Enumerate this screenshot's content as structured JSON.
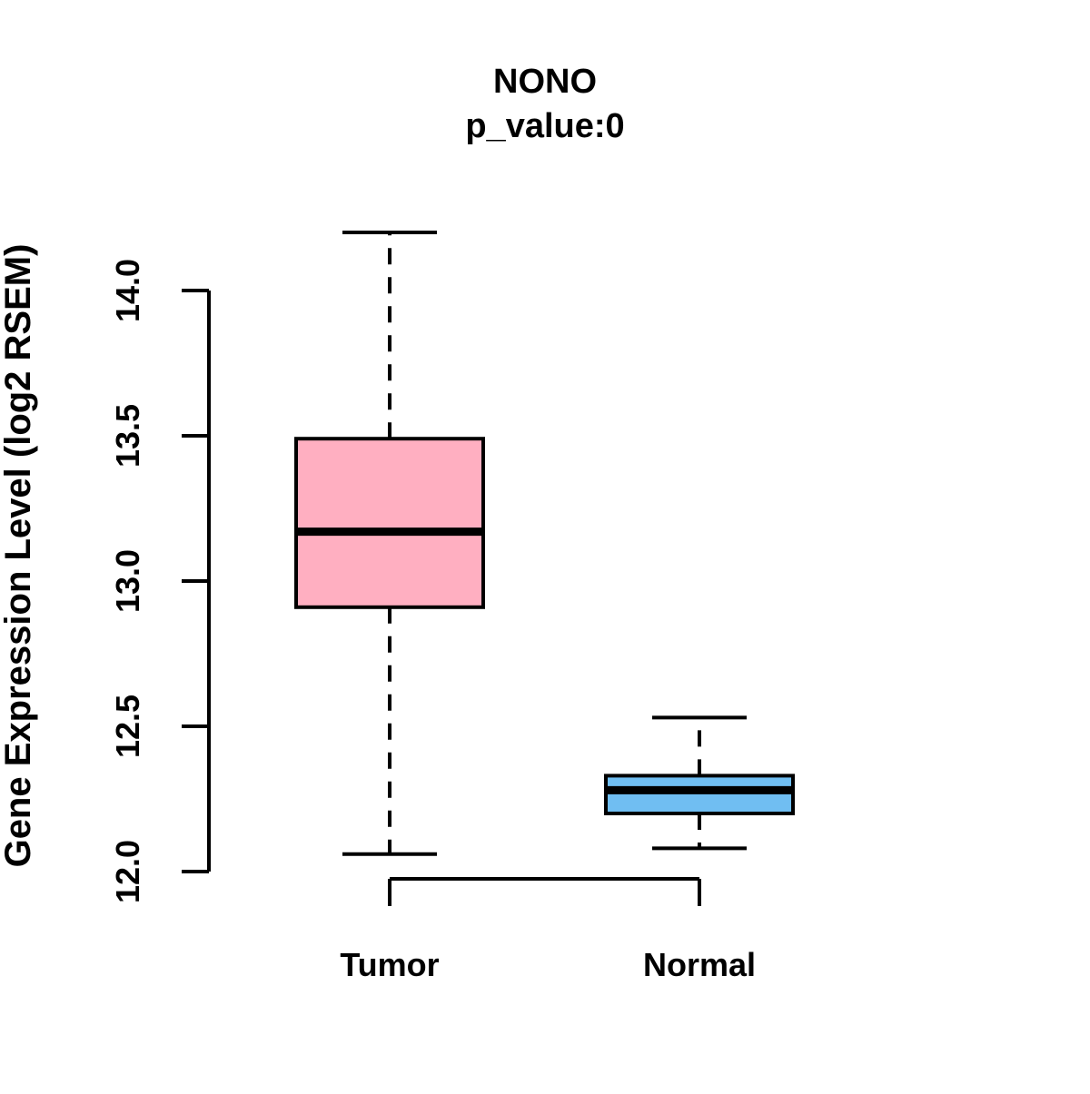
{
  "page": {
    "background": "#ffffff"
  },
  "chart_data": {
    "type": "boxplot",
    "title": "NONO",
    "subtitle": "p_value:0",
    "ylabel": "Gene Expression Level (log2 RSEM)",
    "ylim": [
      12.0,
      14.0
    ],
    "ytick_values": [
      12.0,
      12.5,
      13.0,
      13.5,
      14.0
    ],
    "ytick_labels": [
      "12.0",
      "12.5",
      "13.0",
      "13.5",
      "14.0"
    ],
    "grid": false,
    "legend": "none",
    "categories": [
      "Tumor",
      "Normal"
    ],
    "series": [
      {
        "name": "Tumor",
        "fill_color": "#FFAFC1",
        "whisker_low": 12.06,
        "q1": 12.91,
        "median": 13.17,
        "q3": 13.49,
        "whisker_high": 14.2,
        "outliers": []
      },
      {
        "name": "Normal",
        "fill_color": "#70BEF2",
        "whisker_low": 12.08,
        "q1": 12.2,
        "median": 12.28,
        "q3": 12.33,
        "whisker_high": 12.53,
        "outliers": []
      }
    ],
    "line_color": "#000000"
  }
}
